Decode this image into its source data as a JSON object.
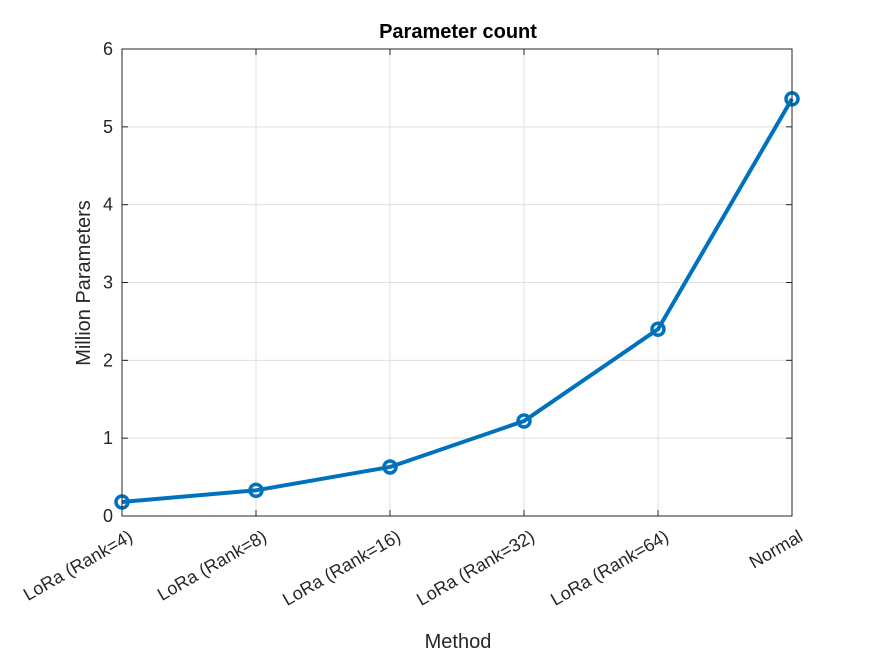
{
  "chart_data": {
    "type": "line",
    "title": "Parameter count",
    "xlabel": "Method",
    "ylabel": "Million Parameters",
    "categories": [
      "LoRa (Rank=4)",
      "LoRa (Rank=8)",
      "LoRa (Rank=16)",
      "LoRa (Rank=32)",
      "LoRa (Rank=64)",
      "Normal"
    ],
    "series": [
      {
        "values": [
          0.18,
          0.33,
          0.63,
          1.22,
          2.4,
          5.36
        ]
      }
    ],
    "ylim": [
      0,
      6
    ],
    "yticks": [
      0,
      1,
      2,
      3,
      4,
      5,
      6
    ],
    "grid": true,
    "legend": "none",
    "color": "#0072BD"
  }
}
